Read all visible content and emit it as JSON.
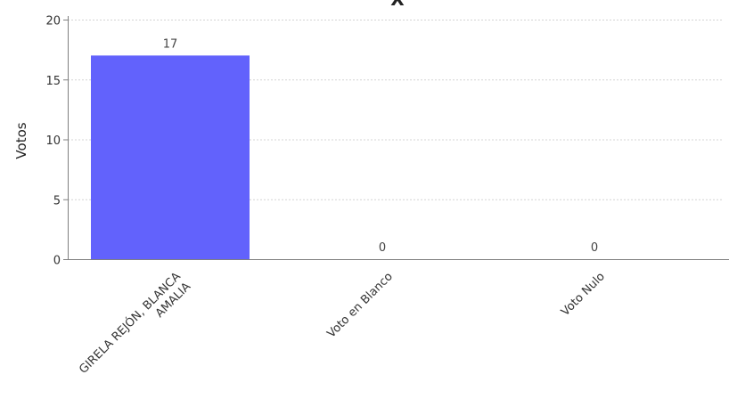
{
  "chart_data": {
    "type": "bar",
    "title": "X",
    "xlabel": "",
    "ylabel": "Votos",
    "ylim": [
      0,
      20
    ],
    "yticks": [
      "0",
      "5",
      "10",
      "15",
      "20"
    ],
    "grid": true,
    "legend": "none",
    "categories": [
      [
        "GIRELA REJÓN, BLANCA",
        "AMALIA"
      ],
      [
        "Voto en Blanco"
      ],
      [
        "Voto Nulo"
      ]
    ],
    "values": [
      17,
      0,
      0
    ],
    "value_labels": [
      "17",
      "0",
      "0"
    ],
    "bar_color": "#6262fc"
  }
}
